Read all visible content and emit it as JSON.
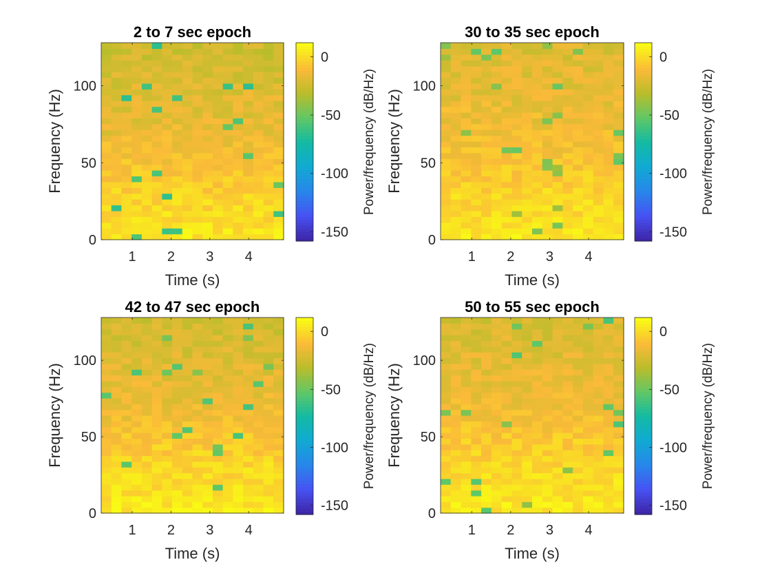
{
  "chart_data": [
    {
      "type": "heatmap",
      "title": "2 to 7 sec epoch",
      "xlabel": "Time (s)",
      "ylabel": "Frequency (Hz)",
      "xlim": [
        0.2,
        4.9
      ],
      "ylim": [
        0,
        128
      ],
      "xticks": [
        "1",
        "2",
        "3",
        "4"
      ],
      "yticks": [
        "0",
        "50",
        "100"
      ],
      "colorbar": {
        "label": "Power/frequency (dB/Hz)",
        "range": [
          -158,
          12
        ],
        "ticks": [
          "0",
          "-50",
          "-100",
          "-150"
        ]
      },
      "power_profile_db": {
        "low_freq_hz": [
          0,
          25
        ],
        "low_freq_db": 5,
        "mid_freq_db": -15,
        "high_freq_db": -25,
        "min_cell_db": -70
      },
      "seed": 11
    },
    {
      "type": "heatmap",
      "title": "30 to 35 sec epoch",
      "xlabel": "Time (s)",
      "ylabel": "Frequency (Hz)",
      "xlim": [
        0.2,
        4.9
      ],
      "ylim": [
        0,
        128
      ],
      "xticks": [
        "1",
        "2",
        "3",
        "4"
      ],
      "yticks": [
        "0",
        "50",
        "100"
      ],
      "colorbar": {
        "label": "Power/frequency (dB/Hz)",
        "range": [
          -158,
          12
        ],
        "ticks": [
          "0",
          "-50",
          "-100",
          "-150"
        ]
      },
      "power_profile_db": {
        "low_freq_hz": [
          0,
          25
        ],
        "low_freq_db": 6,
        "mid_freq_db": -12,
        "high_freq_db": -20,
        "min_cell_db": -55
      },
      "seed": 23
    },
    {
      "type": "heatmap",
      "title": "42 to 47 sec epoch",
      "xlabel": "Time (s)",
      "ylabel": "Frequency (Hz)",
      "xlim": [
        0.2,
        4.9
      ],
      "ylim": [
        0,
        128
      ],
      "xticks": [
        "1",
        "2",
        "3",
        "4"
      ],
      "yticks": [
        "0",
        "50",
        "100"
      ],
      "colorbar": {
        "label": "Power/frequency (dB/Hz)",
        "range": [
          -158,
          12
        ],
        "ticks": [
          "0",
          "-50",
          "-100",
          "-150"
        ]
      },
      "power_profile_db": {
        "low_freq_hz": [
          0,
          30
        ],
        "low_freq_db": 6,
        "mid_freq_db": -14,
        "high_freq_db": -24,
        "min_cell_db": -60
      },
      "seed": 37
    },
    {
      "type": "heatmap",
      "title": "50 to 55 sec epoch",
      "xlabel": "Time (s)",
      "ylabel": "Frequency (Hz)",
      "xlim": [
        0.2,
        4.9
      ],
      "ylim": [
        0,
        128
      ],
      "xticks": [
        "1",
        "2",
        "3",
        "4"
      ],
      "yticks": [
        "0",
        "50",
        "100"
      ],
      "colorbar": {
        "label": "Power/frequency (dB/Hz)",
        "range": [
          -158,
          12
        ],
        "ticks": [
          "0",
          "-50",
          "-100",
          "-150"
        ]
      },
      "power_profile_db": {
        "low_freq_hz": [
          0,
          30
        ],
        "low_freq_db": 6,
        "mid_freq_db": -12,
        "high_freq_db": -22,
        "min_cell_db": -60
      },
      "seed": 53
    }
  ],
  "colors": {
    "colormap": "parula",
    "background": "#ffffff",
    "axis": "#262626"
  }
}
